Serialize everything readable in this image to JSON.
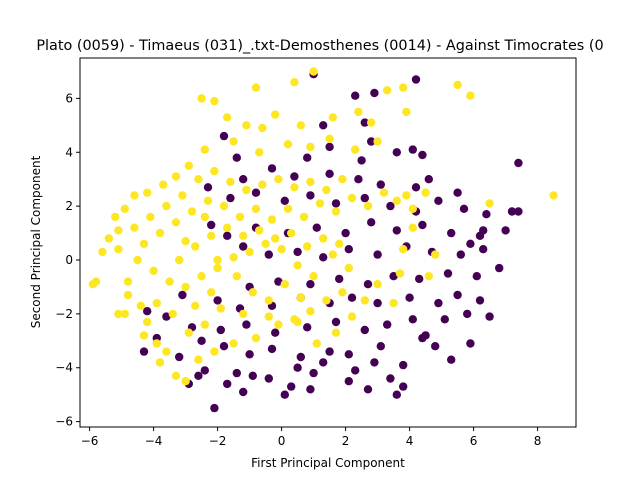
{
  "chart_data": {
    "type": "scatter",
    "title": "Plato (0059) - Timaeus (031)_.txt-Demosthenes (0014) - Against Timocrates (0",
    "xlabel": "First Principal Component",
    "ylabel": "Second Principal Component",
    "xlim": [
      -6.3,
      9.2
    ],
    "ylim": [
      -6.2,
      7.5
    ],
    "xticks": [
      -6,
      -4,
      -2,
      0,
      2,
      4,
      6,
      8
    ],
    "yticks": [
      -6,
      -4,
      -2,
      0,
      2,
      4,
      6
    ],
    "grid": false,
    "legend": "none",
    "series": [
      {
        "color": "#440154",
        "points": [
          [
            -2.1,
            -5.5
          ],
          [
            -1.2,
            -4.9
          ],
          [
            0.1,
            -5.0
          ],
          [
            0.3,
            -4.7
          ],
          [
            0.9,
            -4.8
          ],
          [
            -0.4,
            -4.4
          ],
          [
            2.1,
            -4.5
          ],
          [
            2.7,
            -4.8
          ],
          [
            3.6,
            -5.0
          ],
          [
            3.8,
            -4.7
          ],
          [
            3.4,
            -4.4
          ],
          [
            1.0,
            -4.2
          ],
          [
            -0.9,
            -4.3
          ],
          [
            -1.7,
            -4.6
          ],
          [
            -2.9,
            -4.6
          ],
          [
            -2.6,
            -4.3
          ],
          [
            -2.4,
            -4.1
          ],
          [
            -1.4,
            -4.2
          ],
          [
            0.5,
            -4.0
          ],
          [
            1.3,
            -3.8
          ],
          [
            2.3,
            -4.1
          ],
          [
            2.9,
            -3.8
          ],
          [
            3.8,
            -3.9
          ],
          [
            5.3,
            -3.7
          ],
          [
            4.8,
            -3.2
          ],
          [
            5.9,
            -3.1
          ],
          [
            4.4,
            -2.9
          ],
          [
            3.1,
            -3.2
          ],
          [
            2.1,
            -3.5
          ],
          [
            1.5,
            -3.4
          ],
          [
            0.6,
            -3.6
          ],
          [
            -0.3,
            -3.3
          ],
          [
            -1.0,
            -3.5
          ],
          [
            -1.8,
            -3.2
          ],
          [
            -2.5,
            -3.0
          ],
          [
            -3.2,
            -3.6
          ],
          [
            -3.9,
            -2.9
          ],
          [
            -4.3,
            -3.4
          ],
          [
            -2.8,
            -2.5
          ],
          [
            -1.9,
            -2.6
          ],
          [
            -1.1,
            -2.4
          ],
          [
            -0.2,
            -2.7
          ],
          [
            0.8,
            -2.5
          ],
          [
            1.7,
            -2.3
          ],
          [
            2.6,
            -2.6
          ],
          [
            3.3,
            -2.4
          ],
          [
            4.1,
            -2.2
          ],
          [
            5.1,
            -2.2
          ],
          [
            5.8,
            -2.0
          ],
          [
            6.5,
            -2.1
          ],
          [
            6.2,
            -1.5
          ],
          [
            5.5,
            -1.3
          ],
          [
            4.9,
            -1.6
          ],
          [
            4.0,
            -1.4
          ],
          [
            3.0,
            -1.6
          ],
          [
            2.2,
            -1.4
          ],
          [
            1.5,
            -1.6
          ],
          [
            0.6,
            -1.4
          ],
          [
            -0.3,
            -1.7
          ],
          [
            -1.3,
            -1.8
          ],
          [
            -2.0,
            -1.5
          ],
          [
            -3.6,
            -2.1
          ],
          [
            -4.2,
            -1.9
          ],
          [
            -3.1,
            -1.3
          ],
          [
            -1.0,
            -1.0
          ],
          [
            -0.1,
            -0.8
          ],
          [
            0.9,
            -0.9
          ],
          [
            1.8,
            -0.7
          ],
          [
            2.7,
            -0.9
          ],
          [
            3.5,
            -0.6
          ],
          [
            4.3,
            -0.7
          ],
          [
            5.2,
            -0.5
          ],
          [
            6.1,
            -0.6
          ],
          [
            6.8,
            -0.3
          ],
          [
            6.3,
            0.4
          ],
          [
            5.6,
            0.2
          ],
          [
            4.7,
            0.3
          ],
          [
            3.9,
            0.5
          ],
          [
            3.0,
            0.2
          ],
          [
            2.1,
            0.4
          ],
          [
            1.3,
            0.1
          ],
          [
            0.5,
            0.3
          ],
          [
            -0.4,
            0.2
          ],
          [
            -1.2,
            0.5
          ],
          [
            -1.7,
            0.9
          ],
          [
            -2.2,
            1.3
          ],
          [
            -0.8,
            1.2
          ],
          [
            0.2,
            1.0
          ],
          [
            1.1,
            1.2
          ],
          [
            2.0,
            1.0
          ],
          [
            2.8,
            1.4
          ],
          [
            3.6,
            1.1
          ],
          [
            4.4,
            1.3
          ],
          [
            5.3,
            1.0
          ],
          [
            6.2,
            0.9
          ],
          [
            7.0,
            1.1
          ],
          [
            7.2,
            1.8
          ],
          [
            7.4,
            1.8
          ],
          [
            6.4,
            1.7
          ],
          [
            5.7,
            1.9
          ],
          [
            4.9,
            2.2
          ],
          [
            4.2,
            1.8
          ],
          [
            3.4,
            2.0
          ],
          [
            2.6,
            2.3
          ],
          [
            1.7,
            2.1
          ],
          [
            0.9,
            2.4
          ],
          [
            0.1,
            2.2
          ],
          [
            -0.8,
            2.5
          ],
          [
            -1.6,
            2.3
          ],
          [
            -2.3,
            2.7
          ],
          [
            -1.2,
            3.0
          ],
          [
            0.4,
            3.1
          ],
          [
            1.5,
            3.2
          ],
          [
            2.4,
            3.0
          ],
          [
            3.1,
            2.8
          ],
          [
            4.2,
            2.7
          ],
          [
            4.6,
            3.0
          ],
          [
            5.5,
            2.5
          ],
          [
            4.4,
            3.9
          ],
          [
            4.1,
            4.1
          ],
          [
            3.6,
            4.0
          ],
          [
            2.8,
            4.4
          ],
          [
            2.5,
            3.7
          ],
          [
            1.5,
            4.2
          ],
          [
            0.8,
            3.8
          ],
          [
            -0.3,
            3.4
          ],
          [
            -1.4,
            3.8
          ],
          [
            -1.8,
            4.6
          ],
          [
            1.3,
            5.0
          ],
          [
            2.6,
            5.1
          ],
          [
            2.3,
            6.1
          ],
          [
            2.9,
            6.2
          ],
          [
            1.0,
            6.9
          ],
          [
            4.2,
            6.7
          ],
          [
            7.4,
            3.6
          ],
          [
            6.3,
            1.1
          ],
          [
            5.9,
            0.6
          ],
          [
            4.5,
            -2.8
          ]
        ]
      },
      {
        "color": "#fde725",
        "points": [
          [
            8.5,
            2.4
          ],
          [
            5.5,
            6.5
          ],
          [
            5.9,
            6.1
          ],
          [
            3.3,
            6.3
          ],
          [
            3.8,
            6.4
          ],
          [
            3.9,
            5.5
          ],
          [
            1.0,
            7.0
          ],
          [
            0.4,
            6.6
          ],
          [
            -0.8,
            6.4
          ],
          [
            -2.5,
            6.0
          ],
          [
            -2.1,
            5.9
          ],
          [
            -1.7,
            5.3
          ],
          [
            -1.1,
            5.0
          ],
          [
            -0.6,
            4.9
          ],
          [
            -0.2,
            5.4
          ],
          [
            0.6,
            5.0
          ],
          [
            1.6,
            5.3
          ],
          [
            2.4,
            5.5
          ],
          [
            2.8,
            5.1
          ],
          [
            3.0,
            4.4
          ],
          [
            2.3,
            4.1
          ],
          [
            1.5,
            4.5
          ],
          [
            0.9,
            4.2
          ],
          [
            0.2,
            4.3
          ],
          [
            -0.7,
            4.0
          ],
          [
            -1.5,
            4.4
          ],
          [
            -2.4,
            4.1
          ],
          [
            -2.9,
            3.5
          ],
          [
            -3.3,
            3.1
          ],
          [
            -3.7,
            2.8
          ],
          [
            -4.2,
            2.5
          ],
          [
            -4.6,
            2.4
          ],
          [
            -4.9,
            1.9
          ],
          [
            -5.2,
            1.6
          ],
          [
            -5.1,
            1.1
          ],
          [
            -5.4,
            0.8
          ],
          [
            -5.1,
            0.4
          ],
          [
            -5.6,
            0.3
          ],
          [
            -5.8,
            -0.8
          ],
          [
            -5.9,
            -0.9
          ],
          [
            -4.8,
            -0.8
          ],
          [
            -5.1,
            -2.0
          ],
          [
            -4.9,
            -2.0
          ],
          [
            -4.4,
            -1.7
          ],
          [
            -4.8,
            -1.3
          ],
          [
            -4.2,
            -2.3
          ],
          [
            -4.3,
            -2.8
          ],
          [
            -3.9,
            -3.1
          ],
          [
            -3.6,
            -3.4
          ],
          [
            -3.8,
            -3.8
          ],
          [
            -3.3,
            -4.3
          ],
          [
            -3.0,
            -4.5
          ],
          [
            -2.6,
            -3.7
          ],
          [
            -2.1,
            -3.4
          ],
          [
            -1.5,
            -3.1
          ],
          [
            -0.8,
            -2.9
          ],
          [
            -0.1,
            -2.4
          ],
          [
            0.4,
            -2.2
          ],
          [
            0.9,
            -1.9
          ],
          [
            1.4,
            -1.5
          ],
          [
            1.9,
            -1.2
          ],
          [
            2.1,
            -0.3
          ],
          [
            1.6,
            0.2
          ],
          [
            1.0,
            -0.6
          ],
          [
            0.5,
            -0.2
          ],
          [
            0.0,
            0.4
          ],
          [
            -0.5,
            0.6
          ],
          [
            -1.0,
            0.3
          ],
          [
            -1.5,
            0.1
          ],
          [
            -2.0,
            -0.3
          ],
          [
            -2.5,
            -0.6
          ],
          [
            -3.0,
            -1.0
          ],
          [
            -3.5,
            -0.8
          ],
          [
            -4.0,
            -0.4
          ],
          [
            -4.5,
            0.0
          ],
          [
            -4.3,
            0.6
          ],
          [
            -3.8,
            1.0
          ],
          [
            -3.3,
            1.4
          ],
          [
            -2.8,
            1.8
          ],
          [
            -2.3,
            2.2
          ],
          [
            -1.8,
            2.0
          ],
          [
            -1.3,
            1.6
          ],
          [
            -0.8,
            1.9
          ],
          [
            -0.3,
            1.5
          ],
          [
            0.2,
            1.9
          ],
          [
            0.7,
            1.6
          ],
          [
            1.2,
            2.1
          ],
          [
            1.7,
            1.8
          ],
          [
            2.2,
            2.3
          ],
          [
            2.7,
            2.0
          ],
          [
            3.2,
            2.5
          ],
          [
            3.6,
            2.2
          ],
          [
            4.1,
            1.2
          ],
          [
            4.8,
            0.2
          ],
          [
            4.6,
            -0.6
          ],
          [
            3.8,
            0.4
          ],
          [
            3.7,
            -0.5
          ],
          [
            3.5,
            -1.6
          ],
          [
            3.0,
            -0.9
          ],
          [
            2.6,
            -1.5
          ],
          [
            2.2,
            -2.1
          ],
          [
            1.7,
            -2.7
          ],
          [
            1.1,
            -3.1
          ],
          [
            0.5,
            -2.3
          ],
          [
            -0.4,
            -2.1
          ],
          [
            -1.2,
            -2.0
          ],
          [
            -1.9,
            -1.8
          ],
          [
            -2.4,
            -2.4
          ],
          [
            -2.9,
            -2.7
          ],
          [
            -3.4,
            -2.0
          ],
          [
            -3.9,
            -1.6
          ],
          [
            -3.2,
            0.0
          ],
          [
            -2.7,
            0.5
          ],
          [
            -2.2,
            0.9
          ],
          [
            -1.7,
            1.2
          ],
          [
            -1.2,
            0.9
          ],
          [
            -0.7,
            1.1
          ],
          [
            -0.2,
            0.8
          ],
          [
            0.3,
            1.0
          ],
          [
            0.8,
            0.5
          ],
          [
            1.3,
            0.8
          ],
          [
            1.8,
            0.6
          ],
          [
            -2.6,
            3.0
          ],
          [
            -2.1,
            3.3
          ],
          [
            -1.6,
            2.9
          ],
          [
            -1.1,
            2.6
          ],
          [
            -0.6,
            2.8
          ],
          [
            -0.1,
            3.0
          ],
          [
            0.4,
            2.7
          ],
          [
            0.9,
            2.9
          ],
          [
            1.4,
            2.6
          ],
          [
            1.9,
            3.0
          ],
          [
            -3.1,
            2.4
          ],
          [
            -3.6,
            2.0
          ],
          [
            -4.1,
            1.6
          ],
          [
            -4.6,
            1.2
          ],
          [
            6.5,
            2.1
          ],
          [
            4.5,
            2.5
          ],
          [
            4.1,
            1.9
          ],
          [
            3.9,
            2.4
          ],
          [
            -2.4,
            1.6
          ],
          [
            -2.0,
            0.0
          ],
          [
            -3.0,
            0.7
          ],
          [
            -1.4,
            -0.6
          ],
          [
            -0.9,
            -1.2
          ],
          [
            -0.4,
            -1.5
          ],
          [
            0.1,
            -0.9
          ],
          [
            0.6,
            -1.4
          ],
          [
            -2.2,
            -1.2
          ],
          [
            -2.7,
            -1.7
          ]
        ]
      }
    ]
  }
}
